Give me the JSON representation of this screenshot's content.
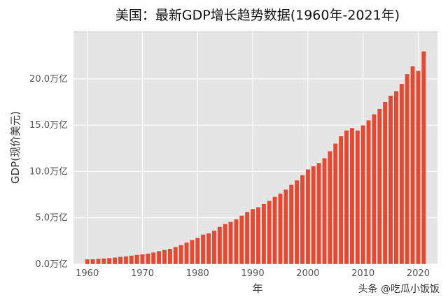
{
  "chart_data": {
    "type": "bar",
    "title": "美国：最新GDP增长趋势数据(1960年-2021年)",
    "xlabel": "年",
    "ylabel": "GDP(现价美元)",
    "x": [
      1960,
      1961,
      1962,
      1963,
      1964,
      1965,
      1966,
      1967,
      1968,
      1969,
      1970,
      1971,
      1972,
      1973,
      1974,
      1975,
      1976,
      1977,
      1978,
      1979,
      1980,
      1981,
      1982,
      1983,
      1984,
      1985,
      1986,
      1987,
      1988,
      1989,
      1990,
      1991,
      1992,
      1993,
      1994,
      1995,
      1996,
      1997,
      1998,
      1999,
      2000,
      2001,
      2002,
      2003,
      2004,
      2005,
      2006,
      2007,
      2008,
      2009,
      2010,
      2011,
      2012,
      2013,
      2014,
      2015,
      2016,
      2017,
      2018,
      2019,
      2020,
      2021
    ],
    "values": [
      0.54,
      0.56,
      0.6,
      0.64,
      0.68,
      0.74,
      0.81,
      0.86,
      0.94,
      1.02,
      1.07,
      1.16,
      1.28,
      1.43,
      1.55,
      1.68,
      1.87,
      2.08,
      2.35,
      2.63,
      2.86,
      3.21,
      3.35,
      3.64,
      4.04,
      4.35,
      4.59,
      4.87,
      5.25,
      5.66,
      5.96,
      6.16,
      6.52,
      6.86,
      7.29,
      7.64,
      8.07,
      8.58,
      9.06,
      9.63,
      10.25,
      10.58,
      10.94,
      11.46,
      12.21,
      13.04,
      13.82,
      14.45,
      14.71,
      14.45,
      15.0,
      15.54,
      16.2,
      16.78,
      17.52,
      18.21,
      18.7,
      19.48,
      20.53,
      21.38,
      20.89,
      22.99
    ],
    "xticks": [
      1960,
      1970,
      1980,
      1990,
      2000,
      2010,
      2020
    ],
    "yticks": [
      "0.0万亿",
      "5.0万亿",
      "10.0万亿",
      "15.0万亿",
      "20.0万亿"
    ],
    "ytick_values": [
      0,
      5,
      10,
      15,
      20
    ],
    "xlim": [
      1957.5,
      2023.5
    ],
    "ylim": [
      0,
      25.2
    ],
    "grid": true,
    "colors": {
      "bar": "#e24a33",
      "plot_background": "#e5e5e5",
      "grid": "#ffffff"
    }
  },
  "watermark": "头条 @吃瓜小饭饭"
}
